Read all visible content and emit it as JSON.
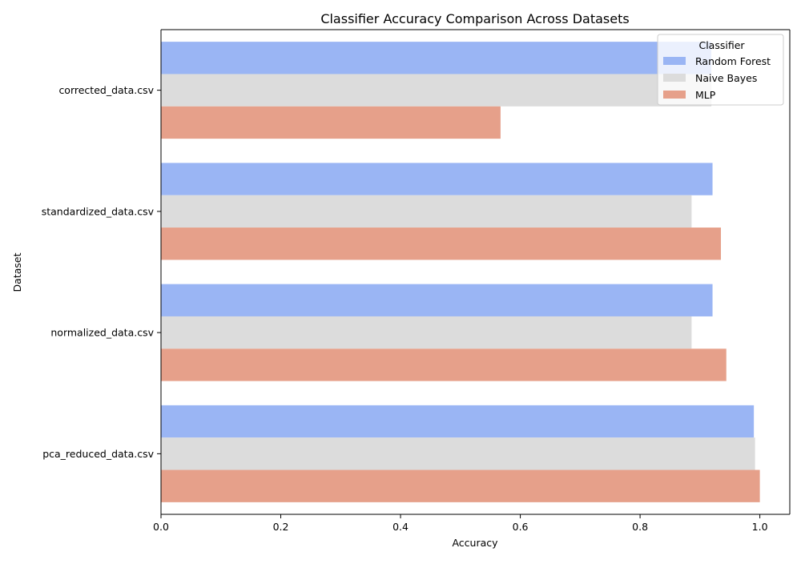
{
  "chart_data": {
    "type": "bar",
    "orientation": "horizontal",
    "title": "Classifier Accuracy Comparison Across Datasets",
    "xlabel": "Accuracy",
    "ylabel": "Dataset",
    "xlim": [
      0,
      1.05
    ],
    "xticks": [
      0.0,
      0.2,
      0.4,
      0.6,
      0.8,
      1.0
    ],
    "xtick_labels": [
      "0.0",
      "0.2",
      "0.4",
      "0.6",
      "0.8",
      "1.0"
    ],
    "grid": false,
    "legend_placement": "top-right",
    "legend_title": "Classifier",
    "categories": [
      "corrected_data.csv",
      "standardized_data.csv",
      "normalized_data.csv",
      "pca_reduced_data.csv"
    ],
    "series": [
      {
        "name": "Random Forest",
        "color": "#9ab5f4",
        "values": [
          0.919,
          0.921,
          0.921,
          0.99
        ]
      },
      {
        "name": "Naive Bayes",
        "color": "#dcdcdc",
        "values": [
          0.919,
          0.886,
          0.886,
          0.992
        ]
      },
      {
        "name": "MLP",
        "color": "#e6a08a",
        "values": [
          0.567,
          0.935,
          0.944,
          1.0
        ]
      }
    ]
  }
}
